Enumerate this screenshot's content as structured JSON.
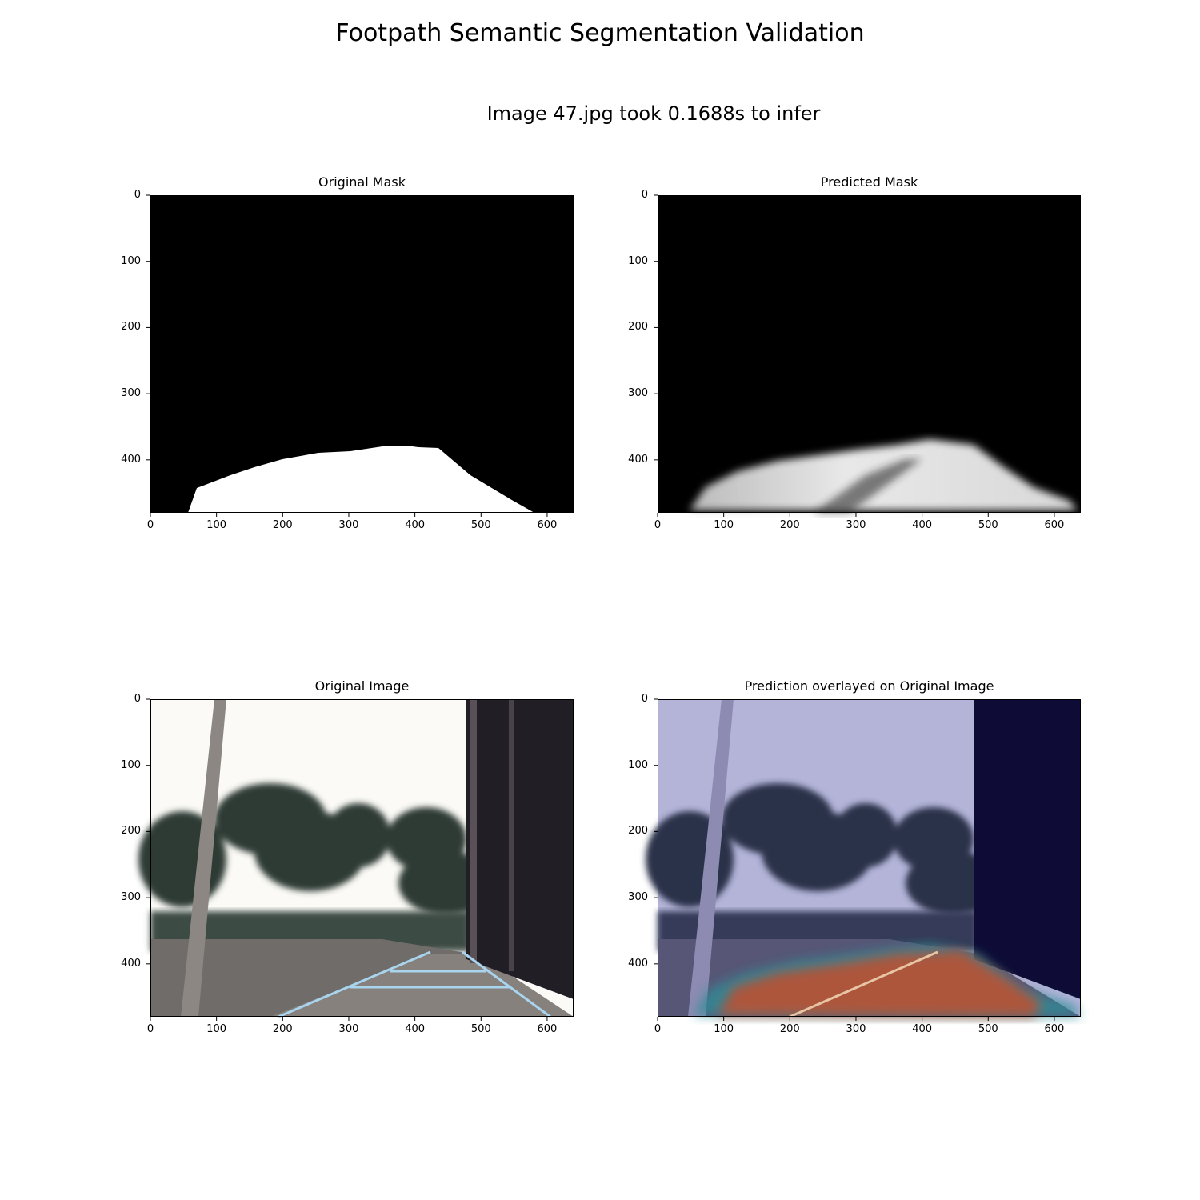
{
  "figure": {
    "title": "Footpath Semantic Segmentation Validation",
    "subtitle": "Image 47.jpg took 0.1688s to infer"
  },
  "panels": [
    {
      "title": "Original Mask"
    },
    {
      "title": "Predicted Mask"
    },
    {
      "title": "Original Image"
    },
    {
      "title": "Prediction overlayed on Original Image"
    }
  ],
  "axes": {
    "x_ticks": [
      "0",
      "100",
      "200",
      "300",
      "400",
      "500",
      "600"
    ],
    "y_ticks": [
      "0",
      "100",
      "200",
      "300",
      "400"
    ],
    "x_range": [
      0,
      640
    ],
    "y_range": [
      0,
      480
    ]
  },
  "colors": {
    "mask_background": "#000000",
    "mask_foreground": "#ffffff",
    "sky": "#fbfaf6",
    "overlay_tint": "#b3b4d8",
    "prediction_heat": "#c2502e"
  }
}
